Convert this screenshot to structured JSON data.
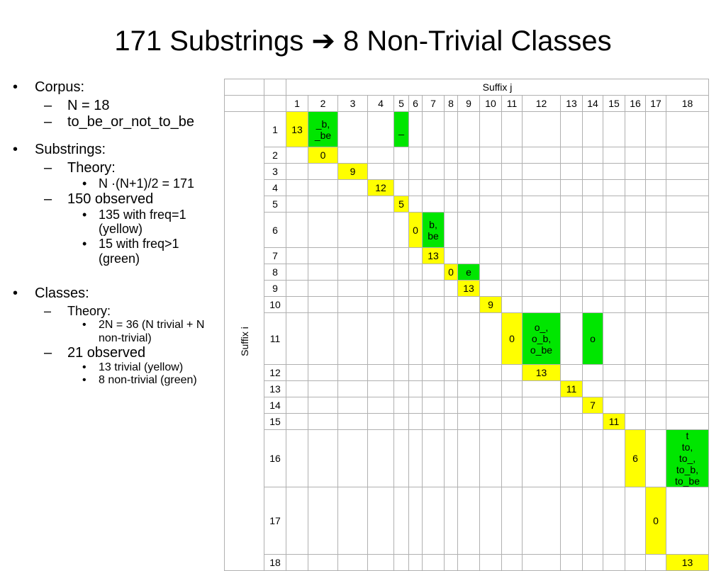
{
  "title": "171 Substrings ➔ 8 Non-Trivial Classes",
  "bullets": [
    {
      "level": 1,
      "marker": "•",
      "text": "Corpus:"
    },
    {
      "level": 2,
      "marker": "–",
      "text": "N = 18"
    },
    {
      "level": 2,
      "marker": "–",
      "text": "to_be_or_not_to_be"
    },
    {
      "level": 1,
      "marker": "•",
      "text": "Substrings:"
    },
    {
      "level": 2,
      "marker": "–",
      "text": "Theory:"
    },
    {
      "level": 3,
      "marker": "•",
      "text": "N ·(N+1)/2 = 171"
    },
    {
      "level": 2,
      "marker": "–",
      "text": "150 observed"
    },
    {
      "level": 3,
      "marker": "•",
      "text": "135 with freq=1 (yellow)"
    },
    {
      "level": 3,
      "marker": "•",
      "text": "15 with freq>1 (green)"
    },
    {
      "level": 1,
      "marker": "•",
      "text": "Classes:"
    },
    {
      "level": 2,
      "marker": "–",
      "text": "Theory:"
    },
    {
      "level": 3,
      "marker": "•",
      "text": "2N = 36 (N trivial + N non-trivial)"
    },
    {
      "level": 2,
      "marker": "–",
      "text": "21 observed"
    },
    {
      "level": 3,
      "marker": "•",
      "text": "13 trivial (yellow)"
    },
    {
      "level": 3,
      "marker": "•",
      "text": "8 non-trivial (green)"
    }
  ],
  "table": {
    "col_header": "Suffix j",
    "row_header": "Suffix i",
    "colors": {
      "yellow": "#ffff00",
      "green": "#00e600",
      "grid": "#b0b0b0"
    },
    "col_labels": [
      "1",
      "2",
      "3",
      "4",
      "5",
      "6",
      "7",
      "8",
      "9",
      "10",
      "11",
      "12",
      "13",
      "14",
      "15",
      "16",
      "17",
      "18"
    ],
    "row_labels": [
      "1",
      "2",
      "3",
      "4",
      "5",
      "6",
      "7",
      "8",
      "9",
      "10",
      "11",
      "12",
      "13",
      "14",
      "15",
      "16",
      "17",
      "18"
    ],
    "cells": [
      {
        "row": 1,
        "col": 1,
        "color": "yellow",
        "text": "13"
      },
      {
        "row": 1,
        "col": 2,
        "color": "green",
        "text": "_b,\n_be"
      },
      {
        "row": 1,
        "col": 5,
        "color": "green",
        "text": "_"
      },
      {
        "row": 2,
        "col": 2,
        "color": "yellow",
        "text": "0"
      },
      {
        "row": 3,
        "col": 3,
        "color": "yellow",
        "text": "9"
      },
      {
        "row": 4,
        "col": 4,
        "color": "yellow",
        "text": "12"
      },
      {
        "row": 5,
        "col": 5,
        "color": "yellow",
        "text": "5"
      },
      {
        "row": 6,
        "col": 6,
        "color": "yellow",
        "text": "0"
      },
      {
        "row": 6,
        "col": 7,
        "color": "green",
        "text": "b,\nbe"
      },
      {
        "row": 7,
        "col": 7,
        "color": "yellow",
        "text": "13"
      },
      {
        "row": 8,
        "col": 8,
        "color": "yellow",
        "text": "0"
      },
      {
        "row": 8,
        "col": 9,
        "color": "green",
        "text": "e"
      },
      {
        "row": 9,
        "col": 9,
        "color": "yellow",
        "text": "13"
      },
      {
        "row": 10,
        "col": 10,
        "color": "yellow",
        "text": "9"
      },
      {
        "row": 11,
        "col": 11,
        "color": "yellow",
        "text": "0"
      },
      {
        "row": 11,
        "col": 12,
        "color": "green",
        "text": "o_,\no_b,\no_be"
      },
      {
        "row": 11,
        "col": 14,
        "color": "green",
        "text": "o"
      },
      {
        "row": 12,
        "col": 12,
        "color": "yellow",
        "text": "13"
      },
      {
        "row": 13,
        "col": 13,
        "color": "yellow",
        "text": "11"
      },
      {
        "row": 14,
        "col": 14,
        "color": "yellow",
        "text": "7"
      },
      {
        "row": 15,
        "col": 15,
        "color": "yellow",
        "text": "11"
      },
      {
        "row": 16,
        "col": 16,
        "color": "yellow",
        "text": "6"
      },
      {
        "row": 16,
        "col": 18,
        "color": "green",
        "text": "t\nto,\nto_,\nto_b,\nto_be"
      },
      {
        "row": 17,
        "col": 17,
        "color": "yellow",
        "text": "0"
      },
      {
        "row": 18,
        "col": 18,
        "color": "yellow",
        "text": "13"
      }
    ]
  }
}
